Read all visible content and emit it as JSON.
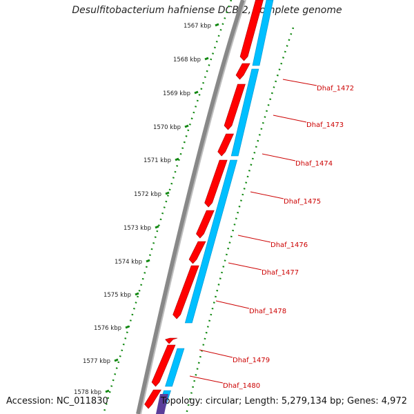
{
  "title": "Desulfitobacterium hafniense DCB-2, complete genome",
  "footer": {
    "accession": "Accession: NC_011830",
    "summary": "Topology: circular; Length: 5,279,134 bp; Genes: 4,972"
  },
  "colors": {
    "backbone": "#888888",
    "forward_gene": "#ff0000",
    "reverse_gene": "#00bfff",
    "other_feature": "#5b3e9a",
    "ruler": "#118811",
    "label": "#cc0000"
  },
  "ruler": {
    "ticks": [
      "1567 kbp",
      "1568 kbp",
      "1569 kbp",
      "1570 kbp",
      "1571 kbp",
      "1572 kbp",
      "1573 kbp",
      "1574 kbp",
      "1575 kbp",
      "1576 kbp",
      "1577 kbp",
      "1578 kbp"
    ]
  },
  "gene_labels": [
    "Dhaf_1472",
    "Dhaf_1473",
    "Dhaf_1474",
    "Dhaf_1475",
    "Dhaf_1476",
    "Dhaf_1477",
    "Dhaf_1478",
    "Dhaf_1479",
    "Dhaf_1480"
  ]
}
